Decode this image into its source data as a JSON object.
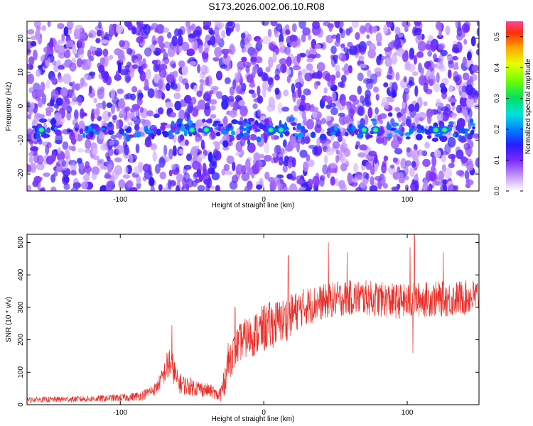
{
  "title": "S173.2026.002.06.10.R08",
  "chart_data": [
    {
      "type": "heatmap",
      "xlabel": "Height of straight line (km)",
      "ylabel": "Frequency (Hz)",
      "xlim": [
        -165,
        150
      ],
      "ylim": [
        -25,
        25
      ],
      "xticks": [
        -100,
        0,
        100
      ],
      "yticks": [
        -20,
        -10,
        0,
        10,
        20
      ],
      "colorbar": {
        "label": "Normalized spectral amplitude",
        "range": [
          0,
          0.55
        ],
        "ticks": [
          0.0,
          0.1,
          0.2,
          0.3,
          0.4,
          0.5
        ]
      },
      "ridge": {
        "frequency_hz": -7,
        "x_start": -160,
        "x_end": 150,
        "peak_amplitude": 0.35,
        "bright_spots_x": [
          -155,
          -50,
          -40,
          5,
          12,
          70,
          78,
          120,
          126
        ]
      }
    },
    {
      "type": "line",
      "xlabel": "Height of straight line (km)",
      "ylabel": "SNR (10 * v/v)",
      "xlim": [
        -165,
        150
      ],
      "ylim": [
        0,
        525
      ],
      "xticks": [
        -100,
        0,
        100
      ],
      "yticks": [
        0,
        100,
        200,
        300,
        400,
        500
      ],
      "color": "#e8302a",
      "series": [
        {
          "name": "SNR",
          "x": [
            -165,
            -120,
            -95,
            -85,
            -75,
            -70,
            -66,
            -63,
            -60,
            -55,
            -50,
            -45,
            -40,
            -35,
            -32,
            -28,
            -25,
            -20,
            -15,
            -10,
            -5,
            0,
            5,
            10,
            15,
            20,
            25,
            30,
            40,
            50,
            60,
            70,
            80,
            90,
            100,
            110,
            120,
            130,
            140,
            150
          ],
          "mean": [
            15,
            18,
            22,
            28,
            50,
            90,
            130,
            110,
            70,
            60,
            55,
            50,
            45,
            40,
            25,
            60,
            130,
            170,
            200,
            210,
            220,
            235,
            245,
            255,
            260,
            280,
            295,
            305,
            315,
            325,
            330,
            330,
            325,
            320,
            318,
            325,
            325,
            325,
            330,
            335
          ],
          "noise": [
            8,
            10,
            12,
            15,
            20,
            30,
            60,
            45,
            35,
            30,
            28,
            25,
            22,
            20,
            15,
            40,
            60,
            60,
            60,
            65,
            70,
            75,
            75,
            70,
            70,
            65,
            60,
            60,
            55,
            55,
            55,
            55,
            55,
            55,
            55,
            55,
            55,
            55,
            55,
            55
          ]
        }
      ],
      "peaks": [
        {
          "x": -64,
          "y": 245
        },
        {
          "x": -20,
          "y": 300
        },
        {
          "x": 17,
          "y": 460
        },
        {
          "x": 45,
          "y": 500
        },
        {
          "x": 58,
          "y": 470
        },
        {
          "x": 102,
          "y": 485
        },
        {
          "x": 105,
          "y": 530
        },
        {
          "x": 125,
          "y": 470
        }
      ],
      "dips": [
        {
          "x": 104,
          "y": 160
        },
        {
          "x": -30,
          "y": 10
        }
      ]
    }
  ]
}
